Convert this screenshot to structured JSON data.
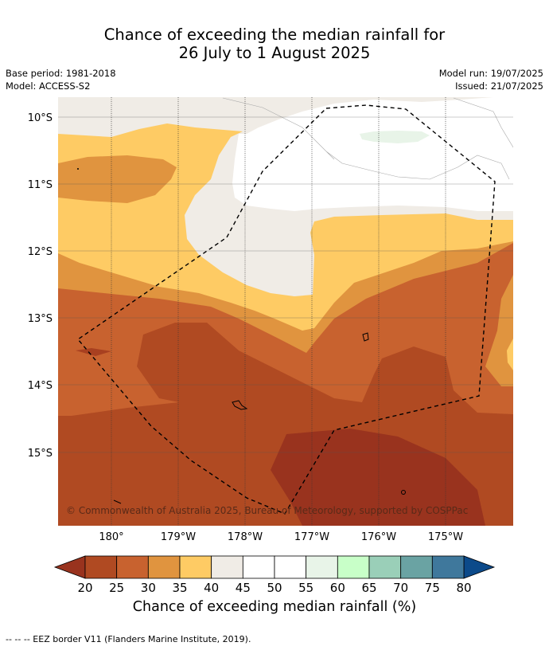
{
  "header": {
    "title_line1": "Chance of exceeding the median rainfall for",
    "title_line2": "26 July to 1 August 2025",
    "base_period": "Base period: 1981-2018",
    "model": "Model: ACCESS-S2",
    "model_run": "Model run: 19/07/2025",
    "issued": "Issued: 21/07/2025"
  },
  "map": {
    "lat_labels": [
      "10°S",
      "11°S",
      "12°S",
      "13°S",
      "14°S",
      "15°S"
    ],
    "lon_labels": [
      "180°",
      "179°W",
      "178°W",
      "177°W",
      "176°W",
      "175°W"
    ],
    "copyright": "© Commonwealth of Australia 2025, Bureau of Meteorology, supported by COSPPac",
    "eez_border": "dashed black line",
    "category_colors": {
      "20-25": "#b04a22",
      "25-30": "#c8622f",
      "30-35": "#e0943f",
      "35-40": "#fecb64",
      "40-45": "#f0ece6",
      "45-55": "#ffffff",
      "55-60": "#e8f4e8",
      "below-20": "#99331e"
    }
  },
  "colorbar": {
    "ticks": [
      "20",
      "25",
      "30",
      "35",
      "40",
      "45",
      "50",
      "55",
      "60",
      "65",
      "70",
      "75",
      "80"
    ],
    "colors": [
      "#b04a22",
      "#c8622f",
      "#e0943f",
      "#fecb64",
      "#f0ece6",
      "#ffffff",
      "#ffffff",
      "#e8f4e8",
      "#c8ffc8",
      "#9acfb8",
      "#6aa3a3",
      "#3f789c"
    ],
    "low_extension_color": "#99331e",
    "high_extension_color": "#0c4a8a",
    "label": "Chance of exceeding median rainfall (%)"
  },
  "footer": {
    "eez_legend": "--  --  -- EEZ border V11 (Flanders Marine Institute, 2019)."
  }
}
